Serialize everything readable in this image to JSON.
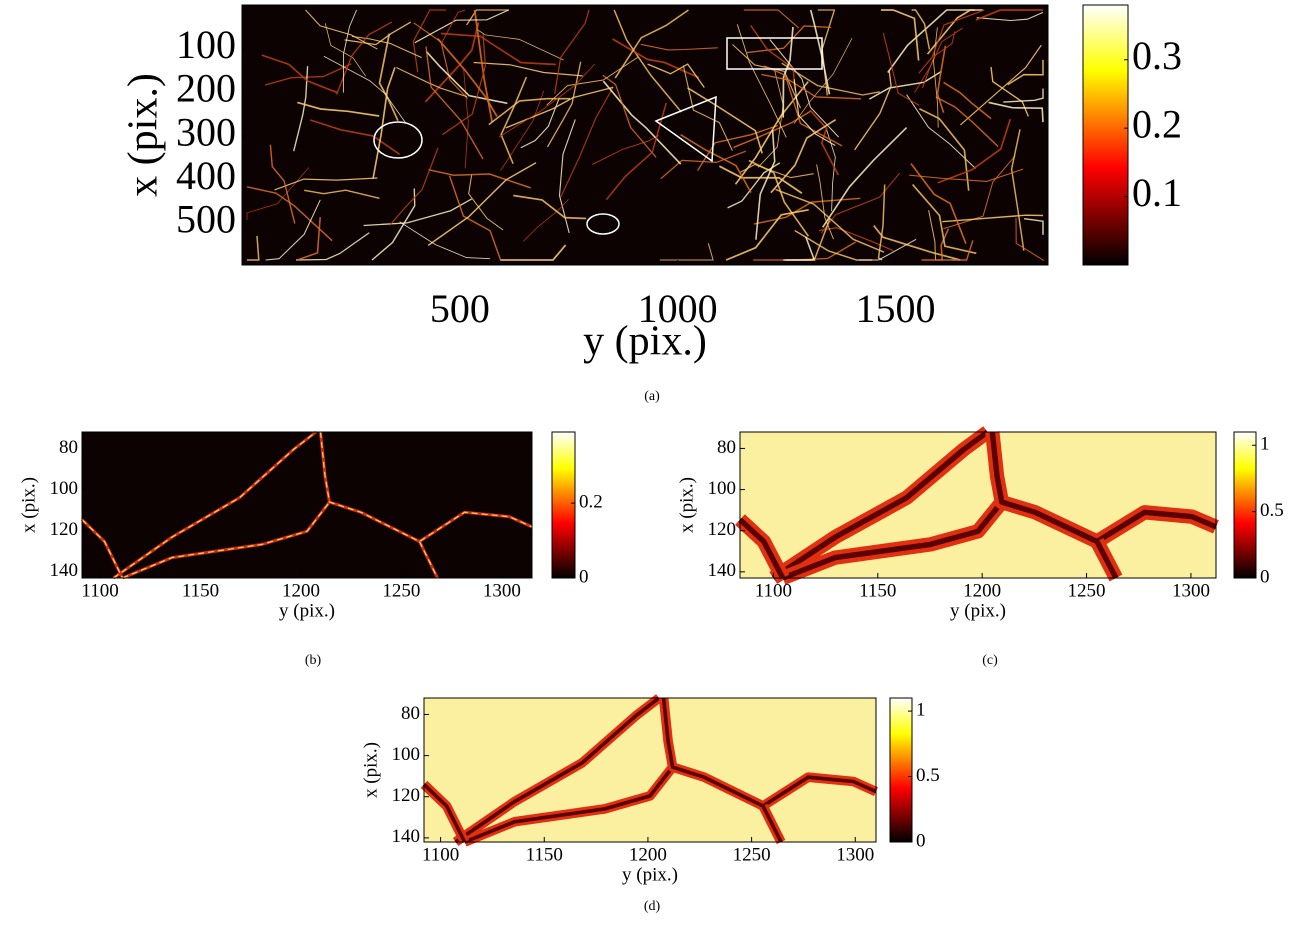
{
  "chart_data": [
    {
      "type": "image",
      "caption": "(a)",
      "xlabel": "y (pix.)",
      "ylabel": "x (pix.)",
      "xlim": [
        0,
        1850
      ],
      "xticks": [
        500,
        1000,
        1500
      ],
      "ylim": [
        0,
        595
      ],
      "yticks": [
        100,
        200,
        300,
        400,
        500
      ],
      "colormap": "hot",
      "clim": [
        0,
        0.38
      ],
      "cticks": [
        0.1,
        0.2,
        0.3
      ]
    },
    {
      "type": "image",
      "caption": "(b)",
      "xlabel": "y (pix.)",
      "ylabel": "x (pix.)",
      "xlim": [
        1091,
        1315
      ],
      "xticks": [
        1100,
        1150,
        1200,
        1250,
        1300
      ],
      "ylim": [
        72,
        143
      ],
      "yticks": [
        80,
        100,
        120,
        140
      ],
      "colormap": "hot",
      "clim": [
        0,
        0.39
      ],
      "cticks": [
        0,
        0.2
      ]
    },
    {
      "type": "image",
      "caption": "(c)",
      "xlabel": "y (pix.)",
      "ylabel": "x (pix.)",
      "xlim": [
        1084,
        1312
      ],
      "xticks": [
        1100,
        1150,
        1200,
        1250,
        1300
      ],
      "ylim": [
        72,
        143
      ],
      "yticks": [
        80,
        100,
        120,
        140
      ],
      "colormap": "hot",
      "clim": [
        0,
        1.1
      ],
      "cticks": [
        0,
        0.5,
        1
      ]
    },
    {
      "type": "image",
      "caption": "(d)",
      "xlabel": "y (pix.)",
      "ylabel": "x (pix.)",
      "xlim": [
        1092,
        1310
      ],
      "xticks": [
        1100,
        1150,
        1200,
        1250,
        1300
      ],
      "ylim": [
        72,
        142
      ],
      "yticks": [
        80,
        100,
        120,
        140
      ],
      "colormap": "hot",
      "clim": [
        0,
        1.1
      ],
      "cticks": [
        0,
        0.5,
        1
      ]
    }
  ]
}
